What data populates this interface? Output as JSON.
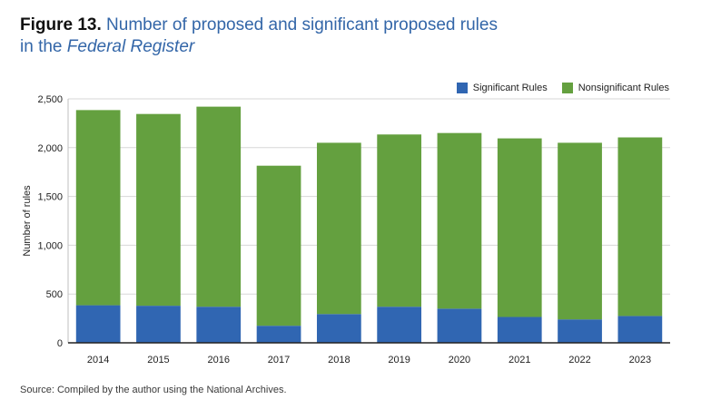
{
  "title": {
    "figure_label": "Figure 13.",
    "text_main": "Number of proposed and significant proposed rules",
    "text_prefix": "in the ",
    "text_italic": "Federal Register"
  },
  "source": "Source: Compiled by the author using the National Archives.",
  "colors": {
    "significant": "#3066b2",
    "nonsignificant": "#64a03f",
    "title": "#3366a8",
    "grid": "#d7d7d7",
    "axis": "#222222"
  },
  "chart_data": {
    "type": "bar",
    "stacked": true,
    "categories": [
      "2014",
      "2015",
      "2016",
      "2017",
      "2018",
      "2019",
      "2020",
      "2021",
      "2022",
      "2023"
    ],
    "series": [
      {
        "name": "Significant Rules",
        "values": [
          385,
          380,
          370,
          175,
          295,
          370,
          350,
          265,
          240,
          275
        ]
      },
      {
        "name": "Nonsignificant Rules",
        "values": [
          2000,
          1965,
          2050,
          1640,
          1755,
          1765,
          1800,
          1830,
          1810,
          1830
        ]
      }
    ],
    "ylabel": "Number of rules",
    "xlabel": "",
    "ylim": [
      0,
      2500
    ],
    "yticks": [
      0,
      500,
      1000,
      1500,
      2000,
      2500
    ],
    "ytick_labels": [
      "0",
      "500",
      "1,000",
      "1,500",
      "2,000",
      "2,500"
    ],
    "grid": true,
    "legend_position": "top-right"
  }
}
